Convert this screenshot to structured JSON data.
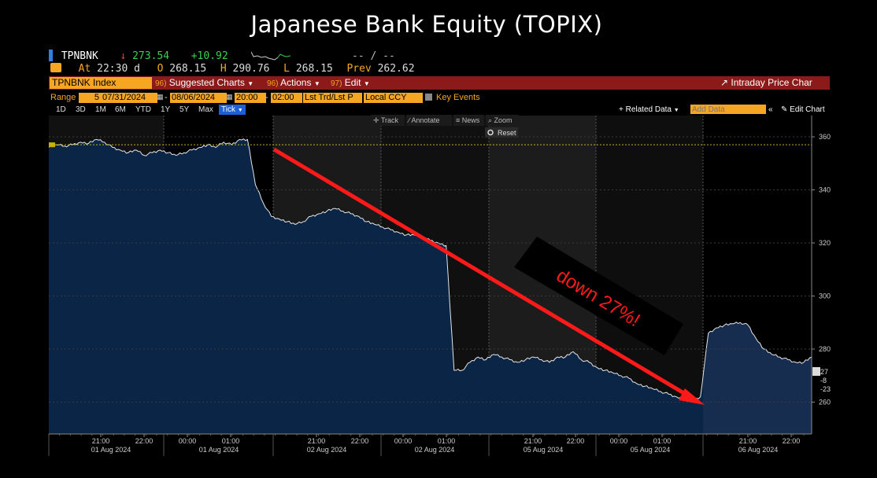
{
  "title": "Japanese Bank Equity (TOPIX)",
  "ticker": {
    "symbol": "TPNBNK",
    "arrow": "↓",
    "last": "273.54",
    "change": "+10.92",
    "dashes": "-- / --",
    "at_label": "At",
    "at_time": "22:30 d",
    "open_label": "O",
    "open": "268.15",
    "high_label": "H",
    "high": "290.76",
    "low_label": "L",
    "low": "268.15",
    "prev_label": "Prev",
    "prev": "262.62"
  },
  "toolbar": {
    "index_name": "TPNBNK Index",
    "suggested_num": "96)",
    "suggested": "Suggested Charts",
    "actions_num": "96)",
    "actions": "Actions",
    "edit_num": "97)",
    "edit": "Edit",
    "intraday": "Intraday Price Char"
  },
  "range": {
    "label": "Range",
    "days": "5",
    "start_date": "07/31/2024",
    "dash": "-",
    "end_date": "08/06/2024",
    "start_time": "20:00",
    "end_time": "02:00",
    "trd": "Lst Trd/Lst P",
    "ccy": "Local CCY",
    "key_events": "Key Events"
  },
  "timebar": {
    "buttons": [
      "1D",
      "3D",
      "1M",
      "6M",
      "YTD",
      "1Y",
      "5Y",
      "Max"
    ],
    "active": "Tick",
    "related": "+ Related Data",
    "add_data_placeholder": "Add Data",
    "edit_chart": "Edit Chart"
  },
  "chart_tools": {
    "track": "Track",
    "annotate": "Annotate",
    "news": "News",
    "zoom": "Zoom",
    "reset": "Reset"
  },
  "annotation": {
    "text": "down 27%!",
    "color": "#ff1a1a"
  },
  "right_values": [
    "27",
    "-8",
    "-23"
  ],
  "colors": {
    "area_fill": "#0b2547",
    "area_fill_late": "#172d4f",
    "line": "#e6e6e6",
    "orange": "#f5a623",
    "red_bar": "#8b1a1a",
    "green": "#3ccf4e",
    "red": "#ff3b3b",
    "yellow_ref": "#c8b400"
  },
  "chart_data": {
    "type": "area",
    "title": "",
    "ylim": [
      248,
      368
    ],
    "yticks": [
      260,
      280,
      300,
      320,
      340,
      360
    ],
    "reference_line": 357,
    "x_tick_labels": [
      {
        "time": "21:00",
        "date": "01 Aug 2024"
      },
      {
        "time": "22:00",
        "date": ""
      },
      {
        "time": "00:00",
        "date": ""
      },
      {
        "time": "01:00",
        "date": "01 Aug 2024"
      },
      {
        "time": "21:00",
        "date": "02 Aug 2024"
      },
      {
        "time": "22:00",
        "date": ""
      },
      {
        "time": "00:00",
        "date": ""
      },
      {
        "time": "01:00",
        "date": "02 Aug 2024"
      },
      {
        "time": "21:00",
        "date": "05 Aug 2024"
      },
      {
        "time": "22:00",
        "date": ""
      },
      {
        "time": "00:00",
        "date": ""
      },
      {
        "time": "01:00",
        "date": "05 Aug 2024"
      },
      {
        "time": "21:00",
        "date": "06 Aug 2024"
      },
      {
        "time": "22:00",
        "date": ""
      }
    ],
    "series": [
      {
        "values": [
          356,
          357,
          356.5,
          357,
          358,
          357.5,
          359,
          358,
          356,
          355,
          354,
          355,
          353,
          354,
          355,
          354,
          353,
          354,
          355,
          356,
          357,
          356,
          358,
          357,
          359,
          359,
          342,
          335,
          330,
          329,
          328,
          327,
          328,
          330,
          331,
          332,
          333,
          332,
          331,
          330,
          328,
          327,
          326,
          325,
          324,
          323,
          323,
          322,
          321,
          320,
          319,
          272,
          272,
          275,
          277,
          276,
          278,
          277,
          276,
          275,
          276,
          277,
          276,
          275,
          277,
          277,
          279,
          276,
          275,
          273,
          272,
          271,
          270,
          269,
          267,
          266,
          265,
          264,
          263,
          262,
          261,
          260,
          262,
          286,
          288,
          289,
          289.5,
          290,
          289,
          284,
          280,
          278,
          277,
          276,
          275,
          275,
          277
        ]
      }
    ]
  }
}
